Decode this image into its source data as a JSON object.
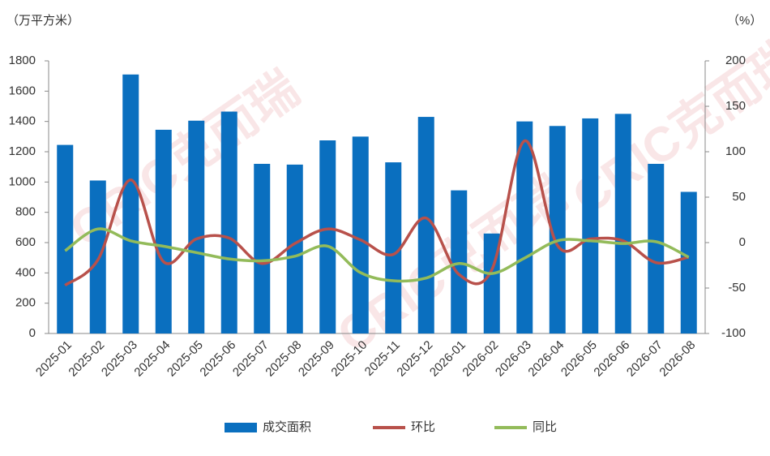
{
  "chart_data": {
    "type": "bar",
    "y_unit_label": "（万平方米）",
    "y2_unit_label": "（%）",
    "watermark": "CRIC克而瑞",
    "categories": [
      "2025-01",
      "2025-02",
      "2025-03",
      "2025-04",
      "2025-05",
      "2025-06",
      "2025-07",
      "2025-08",
      "2025-09",
      "2025-10",
      "2025-11",
      "2025-12",
      "2026-01",
      "2026-02",
      "2026-03",
      "2026-04",
      "2026-05",
      "2026-06",
      "2026-07",
      "2026-08"
    ],
    "series": [
      {
        "name": "成交面积",
        "type": "bar",
        "color": "#0a6fbf",
        "values": [
          1245,
          1010,
          1710,
          1345,
          1405,
          1465,
          1120,
          1115,
          1275,
          1300,
          1130,
          1430,
          945,
          660,
          1400,
          1370,
          1420,
          1450,
          1120,
          935
        ]
      },
      {
        "name": "环比",
        "type": "line",
        "axis": "y2",
        "color": "#b8514b",
        "values": [
          -47,
          -19,
          69,
          -21,
          4,
          5,
          -23,
          -1,
          15,
          3,
          -13,
          27,
          -35,
          -30,
          112,
          -3,
          4,
          2,
          -22,
          -16
        ]
      },
      {
        "name": "同比",
        "type": "line",
        "axis": "y2",
        "color": "#93bb5a",
        "values": [
          -9,
          15,
          2,
          -4,
          -11,
          -18,
          -20,
          -15,
          -4,
          -33,
          -42,
          -39,
          -23,
          -34,
          -17,
          2,
          2,
          -1,
          1,
          -16
        ]
      }
    ],
    "ylim": [
      0,
      1800
    ],
    "yticks": [
      0,
      200,
      400,
      600,
      800,
      1000,
      1200,
      1400,
      1600,
      1800
    ],
    "y2lim": [
      -100,
      200
    ],
    "y2ticks": [
      -100,
      -50,
      0,
      50,
      100,
      150,
      200
    ],
    "grid": false
  }
}
